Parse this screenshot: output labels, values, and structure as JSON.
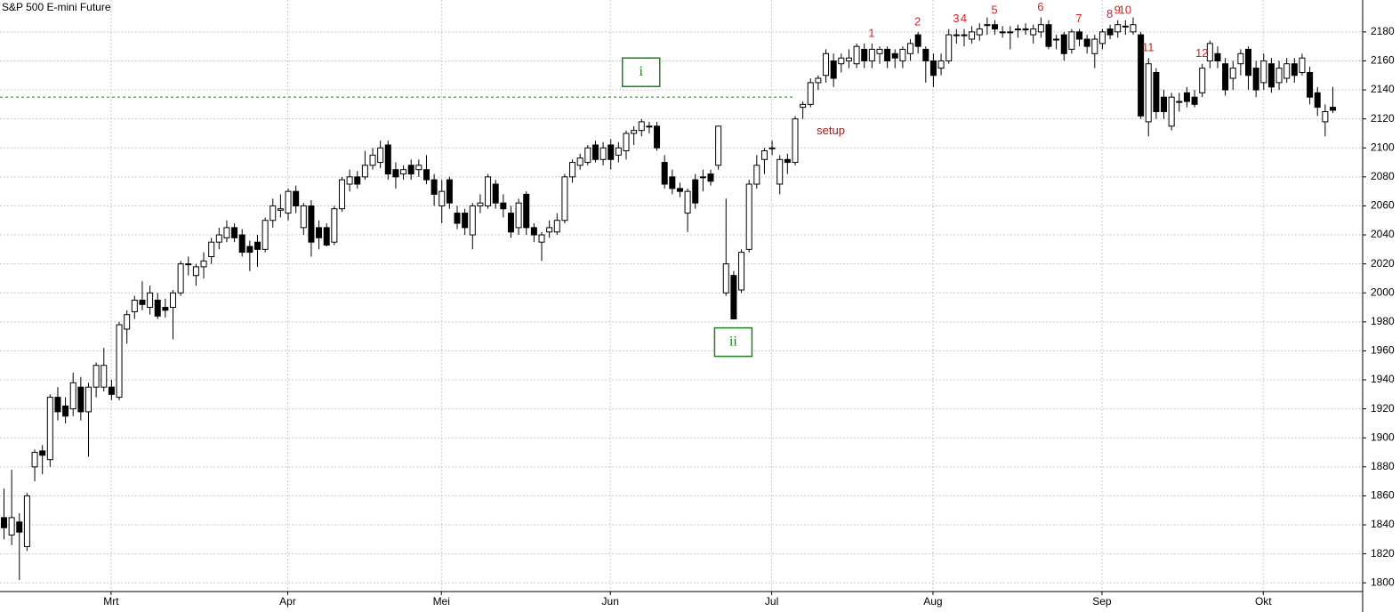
{
  "chart_data": {
    "type": "candlestick",
    "title": "S&P 500 E-mini Future",
    "ylim": [
      1794,
      2202
    ],
    "yticks": [
      1800,
      1820,
      1840,
      1860,
      1880,
      1900,
      1920,
      1940,
      1960,
      1980,
      2000,
      2020,
      2040,
      2060,
      2080,
      2100,
      2120,
      2140,
      2160,
      2180
    ],
    "xticks": [
      {
        "value": 14,
        "label": "Mrt"
      },
      {
        "value": 37,
        "label": "Apr"
      },
      {
        "value": 57,
        "label": "Mei"
      },
      {
        "value": 79,
        "label": "Jun"
      },
      {
        "value": 100,
        "label": "Jul"
      },
      {
        "value": 121,
        "label": "Aug"
      },
      {
        "value": 143,
        "label": "Sep"
      },
      {
        "value": 164,
        "label": "Okt"
      }
    ],
    "grid": true,
    "up_color": "#ffffff",
    "down_color": "#000000",
    "ohlc": [
      [
        1845,
        1865,
        1830,
        1838
      ],
      [
        1833,
        1878,
        1826,
        1845
      ],
      [
        1842,
        1848,
        1802,
        1835
      ],
      [
        1825,
        1862,
        1822,
        1860
      ],
      [
        1880,
        1892,
        1870,
        1890
      ],
      [
        1891,
        1895,
        1875,
        1888
      ],
      [
        1885,
        1930,
        1880,
        1928
      ],
      [
        1928,
        1935,
        1912,
        1918
      ],
      [
        1922,
        1928,
        1910,
        1915
      ],
      [
        1920,
        1945,
        1915,
        1938
      ],
      [
        1935,
        1942,
        1912,
        1918
      ],
      [
        1918,
        1938,
        1887,
        1935
      ],
      [
        1935,
        1952,
        1928,
        1950
      ],
      [
        1935,
        1962,
        1932,
        1950
      ],
      [
        1935,
        1940,
        1926,
        1930
      ],
      [
        1928,
        1980,
        1926,
        1978
      ],
      [
        1975,
        1988,
        1965,
        1985
      ],
      [
        1987,
        1998,
        1982,
        1995
      ],
      [
        1995,
        2008,
        1988,
        1992
      ],
      [
        1990,
        2005,
        1985,
        2000
      ],
      [
        1995,
        2000,
        1982,
        1984
      ],
      [
        1990,
        1996,
        1983,
        1988
      ],
      [
        1990,
        2002,
        1968,
        2000
      ],
      [
        2000,
        2022,
        1998,
        2020
      ],
      [
        2020,
        2025,
        2012,
        2020
      ],
      [
        2012,
        2020,
        2005,
        2018
      ],
      [
        2018,
        2028,
        2010,
        2022
      ],
      [
        2025,
        2038,
        2020,
        2035
      ],
      [
        2035,
        2045,
        2030,
        2040
      ],
      [
        2038,
        2050,
        2035,
        2045
      ],
      [
        2045,
        2048,
        2035,
        2038
      ],
      [
        2040,
        2044,
        2025,
        2028
      ],
      [
        2032,
        2036,
        2015,
        2028
      ],
      [
        2035,
        2040,
        2018,
        2030
      ],
      [
        2030,
        2052,
        2028,
        2050
      ],
      [
        2050,
        2065,
        2045,
        2060
      ],
      [
        2057,
        2068,
        2052,
        2058
      ],
      [
        2055,
        2072,
        2050,
        2070
      ],
      [
        2070,
        2074,
        2055,
        2060
      ],
      [
        2045,
        2062,
        2040,
        2060
      ],
      [
        2060,
        2064,
        2025,
        2035
      ],
      [
        2045,
        2050,
        2030,
        2038
      ],
      [
        2045,
        2048,
        2032,
        2033
      ],
      [
        2035,
        2060,
        2033,
        2058
      ],
      [
        2058,
        2080,
        2056,
        2078
      ],
      [
        2075,
        2085,
        2070,
        2080
      ],
      [
        2080,
        2084,
        2072,
        2075
      ],
      [
        2080,
        2098,
        2078,
        2088
      ],
      [
        2088,
        2100,
        2085,
        2095
      ],
      [
        2090,
        2105,
        2086,
        2100
      ],
      [
        2102,
        2105,
        2078,
        2082
      ],
      [
        2085,
        2090,
        2072,
        2080
      ],
      [
        2082,
        2088,
        2078,
        2085
      ],
      [
        2088,
        2092,
        2078,
        2082
      ],
      [
        2085,
        2092,
        2080,
        2088
      ],
      [
        2085,
        2095,
        2075,
        2078
      ],
      [
        2078,
        2082,
        2060,
        2068
      ],
      [
        2060,
        2078,
        2048,
        2070
      ],
      [
        2078,
        2080,
        2058,
        2062
      ],
      [
        2055,
        2060,
        2044,
        2048
      ],
      [
        2055,
        2058,
        2040,
        2045
      ],
      [
        2040,
        2062,
        2030,
        2060
      ],
      [
        2060,
        2068,
        2055,
        2062
      ],
      [
        2060,
        2082,
        2058,
        2080
      ],
      [
        2075,
        2078,
        2058,
        2062
      ],
      [
        2062,
        2068,
        2052,
        2058
      ],
      [
        2055,
        2060,
        2038,
        2042
      ],
      [
        2045,
        2065,
        2040,
        2062
      ],
      [
        2068,
        2070,
        2040,
        2045
      ],
      [
        2045,
        2048,
        2035,
        2040
      ],
      [
        2035,
        2042,
        2022,
        2040
      ],
      [
        2042,
        2050,
        2038,
        2045
      ],
      [
        2042,
        2055,
        2040,
        2050
      ],
      [
        2050,
        2082,
        2048,
        2080
      ],
      [
        2080,
        2092,
        2076,
        2090
      ],
      [
        2088,
        2096,
        2085,
        2093
      ],
      [
        2090,
        2102,
        2088,
        2100
      ],
      [
        2102,
        2105,
        2090,
        2092
      ],
      [
        2092,
        2104,
        2088,
        2100
      ],
      [
        2102,
        2106,
        2085,
        2092
      ],
      [
        2095,
        2104,
        2090,
        2100
      ],
      [
        2098,
        2112,
        2092,
        2110
      ],
      [
        2110,
        2115,
        2102,
        2112
      ],
      [
        2112,
        2120,
        2108,
        2118
      ],
      [
        2115,
        2118,
        2110,
        2115
      ],
      [
        2115,
        2118,
        2098,
        2100
      ],
      [
        2090,
        2095,
        2072,
        2075
      ],
      [
        2080,
        2085,
        2068,
        2072
      ],
      [
        2072,
        2076,
        2066,
        2070
      ],
      [
        2055,
        2072,
        2042,
        2070
      ],
      [
        2078,
        2082,
        2058,
        2062
      ],
      [
        2080,
        2085,
        2070,
        2080
      ],
      [
        2082,
        2085,
        2074,
        2077
      ],
      [
        2088,
        2115,
        2085,
        2115
      ],
      [
        2000,
        2065,
        1998,
        2020
      ],
      [
        2012,
        2015,
        1982,
        1982
      ],
      [
        2002,
        2030,
        2000,
        2028
      ],
      [
        2030,
        2078,
        2028,
        2075
      ],
      [
        2075,
        2095,
        2072,
        2088
      ],
      [
        2092,
        2100,
        2082,
        2098
      ],
      [
        2100,
        2105,
        2095,
        2100
      ],
      [
        2075,
        2095,
        2068,
        2092
      ],
      [
        2092,
        2096,
        2082,
        2090
      ],
      [
        2090,
        2122,
        2088,
        2120
      ],
      [
        2128,
        2132,
        2120,
        2130
      ],
      [
        2130,
        2148,
        2128,
        2145
      ],
      [
        2145,
        2150,
        2140,
        2148
      ],
      [
        2150,
        2168,
        2145,
        2165
      ],
      [
        2160,
        2165,
        2142,
        2148
      ],
      [
        2158,
        2165,
        2152,
        2162
      ],
      [
        2160,
        2168,
        2155,
        2162
      ],
      [
        2158,
        2172,
        2155,
        2170
      ],
      [
        2168,
        2172,
        2155,
        2160
      ],
      [
        2160,
        2172,
        2155,
        2168
      ],
      [
        2165,
        2170,
        2158,
        2168
      ],
      [
        2168,
        2170,
        2155,
        2160
      ],
      [
        2165,
        2168,
        2155,
        2162
      ],
      [
        2160,
        2170,
        2155,
        2168
      ],
      [
        2165,
        2175,
        2160,
        2172
      ],
      [
        2178,
        2180,
        2165,
        2170
      ],
      [
        2168,
        2170,
        2145,
        2160
      ],
      [
        2160,
        2165,
        2142,
        2150
      ],
      [
        2155,
        2165,
        2150,
        2160
      ],
      [
        2160,
        2182,
        2158,
        2178
      ],
      [
        2178,
        2182,
        2172,
        2178
      ],
      [
        2178,
        2182,
        2170,
        2178
      ],
      [
        2175,
        2184,
        2172,
        2180
      ],
      [
        2178,
        2186,
        2174,
        2182
      ],
      [
        2185,
        2190,
        2178,
        2185
      ],
      [
        2185,
        2188,
        2178,
        2182
      ],
      [
        2180,
        2184,
        2176,
        2180
      ],
      [
        2180,
        2184,
        2168,
        2180
      ],
      [
        2182,
        2185,
        2176,
        2182
      ],
      [
        2182,
        2186,
        2178,
        2182
      ],
      [
        2178,
        2185,
        2172,
        2182
      ],
      [
        2180,
        2190,
        2176,
        2185
      ],
      [
        2185,
        2188,
        2168,
        2170
      ],
      [
        2175,
        2178,
        2168,
        2175
      ],
      [
        2178,
        2180,
        2160,
        2165
      ],
      [
        2168,
        2182,
        2165,
        2180
      ],
      [
        2180,
        2182,
        2170,
        2175
      ],
      [
        2175,
        2178,
        2165,
        2170
      ],
      [
        2165,
        2178,
        2155,
        2175
      ],
      [
        2172,
        2182,
        2168,
        2180
      ],
      [
        2182,
        2185,
        2175,
        2178
      ],
      [
        2180,
        2188,
        2176,
        2185
      ],
      [
        2184,
        2188,
        2178,
        2184
      ],
      [
        2180,
        2190,
        2178,
        2185
      ],
      [
        2178,
        2180,
        2120,
        2122
      ],
      [
        2118,
        2162,
        2108,
        2158
      ],
      [
        2152,
        2155,
        2120,
        2125
      ],
      [
        2135,
        2140,
        2120,
        2125
      ],
      [
        2115,
        2138,
        2112,
        2135
      ],
      [
        2132,
        2138,
        2125,
        2132
      ],
      [
        2138,
        2142,
        2128,
        2132
      ],
      [
        2135,
        2140,
        2128,
        2130
      ],
      [
        2138,
        2158,
        2135,
        2155
      ],
      [
        2160,
        2174,
        2155,
        2172
      ],
      [
        2165,
        2170,
        2155,
        2160
      ],
      [
        2158,
        2162,
        2136,
        2140
      ],
      [
        2148,
        2160,
        2140,
        2155
      ],
      [
        2158,
        2168,
        2150,
        2165
      ],
      [
        2168,
        2170,
        2140,
        2150
      ],
      [
        2155,
        2160,
        2135,
        2140
      ],
      [
        2145,
        2165,
        2140,
        2160
      ],
      [
        2158,
        2162,
        2138,
        2142
      ],
      [
        2145,
        2160,
        2140,
        2155
      ],
      [
        2148,
        2162,
        2145,
        2158
      ],
      [
        2158,
        2162,
        2145,
        2150
      ],
      [
        2152,
        2165,
        2150,
        2162
      ],
      [
        2152,
        2156,
        2130,
        2135
      ],
      [
        2138,
        2142,
        2122,
        2128
      ],
      [
        2118,
        2130,
        2108,
        2125
      ],
      [
        2128,
        2142,
        2124,
        2126
      ]
    ],
    "counts": [
      {
        "text": "1",
        "candle": 113
      },
      {
        "text": "2",
        "candle": 119
      },
      {
        "text": "3",
        "candle": 124
      },
      {
        "text": "4",
        "candle": 125
      },
      {
        "text": "5",
        "candle": 129
      },
      {
        "text": "6",
        "candle": 135
      },
      {
        "text": "7",
        "candle": 140
      },
      {
        "text": "8",
        "candle": 144
      },
      {
        "text": "9",
        "candle": 145
      },
      {
        "text": "10",
        "candle": 146
      },
      {
        "text": "11",
        "candle": 149
      },
      {
        "text": "12",
        "candle": 156
      }
    ],
    "setup": {
      "text": "setup",
      "candle": 104
    },
    "level": {
      "value": 2135,
      "end_candle": 104
    },
    "waves": [
      {
        "text": "i",
        "candle": 83
      },
      {
        "text": "ii",
        "candle": 95
      }
    ]
  }
}
